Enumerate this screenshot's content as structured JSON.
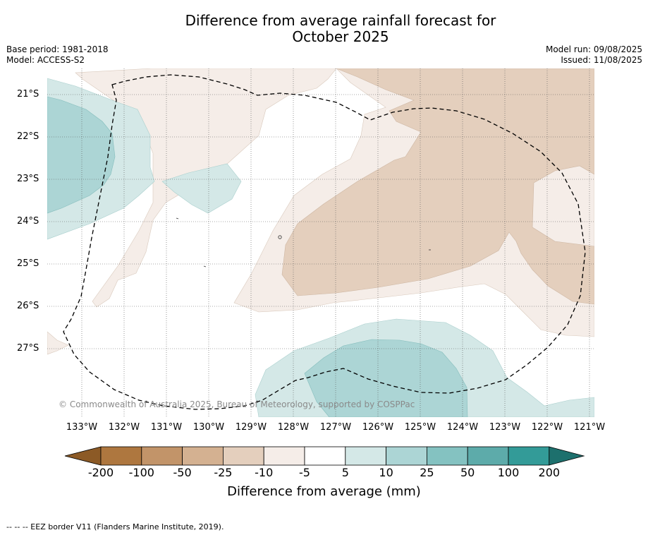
{
  "title_line1": "Difference from average rainfall forecast for",
  "title_line2": "October 2025",
  "base_period": "Base period: 1981-2018",
  "model": "Model: ACCESS-S2",
  "model_run": "Model run: 09/08/2025",
  "issued": "Issued: 11/08/2025",
  "copyright": "© Commonwealth of Australia 2025, Bureau of Meteorology, supported by COSPPac",
  "lat_labels": [
    "21°S",
    "22°S",
    "23°S",
    "24°S",
    "25°S",
    "26°S",
    "27°S"
  ],
  "lon_labels": [
    "133°W",
    "132°W",
    "131°W",
    "130°W",
    "129°W",
    "128°W",
    "127°W",
    "126°W",
    "125°W",
    "124°W",
    "123°W",
    "122°W",
    "121°W"
  ],
  "legend": {
    "title": "Difference from average (mm)",
    "ticks": [
      "-200",
      "-100",
      "-50",
      "-25",
      "-10",
      "-5",
      "5",
      "10",
      "25",
      "50",
      "100",
      "200"
    ],
    "colors": [
      "#8c5a26",
      "#ae773f",
      "#c29469",
      "#d4b191",
      "#e4cfbd",
      "#f5ede8",
      "#ffffff",
      "#d4e8e7",
      "#acd5d5",
      "#84c2c1",
      "#5dabaa",
      "#339b98",
      "#1d706d"
    ]
  },
  "footnote": "--  --  -- EEZ border V11 (Flanders Marine Institute, 2019)."
}
